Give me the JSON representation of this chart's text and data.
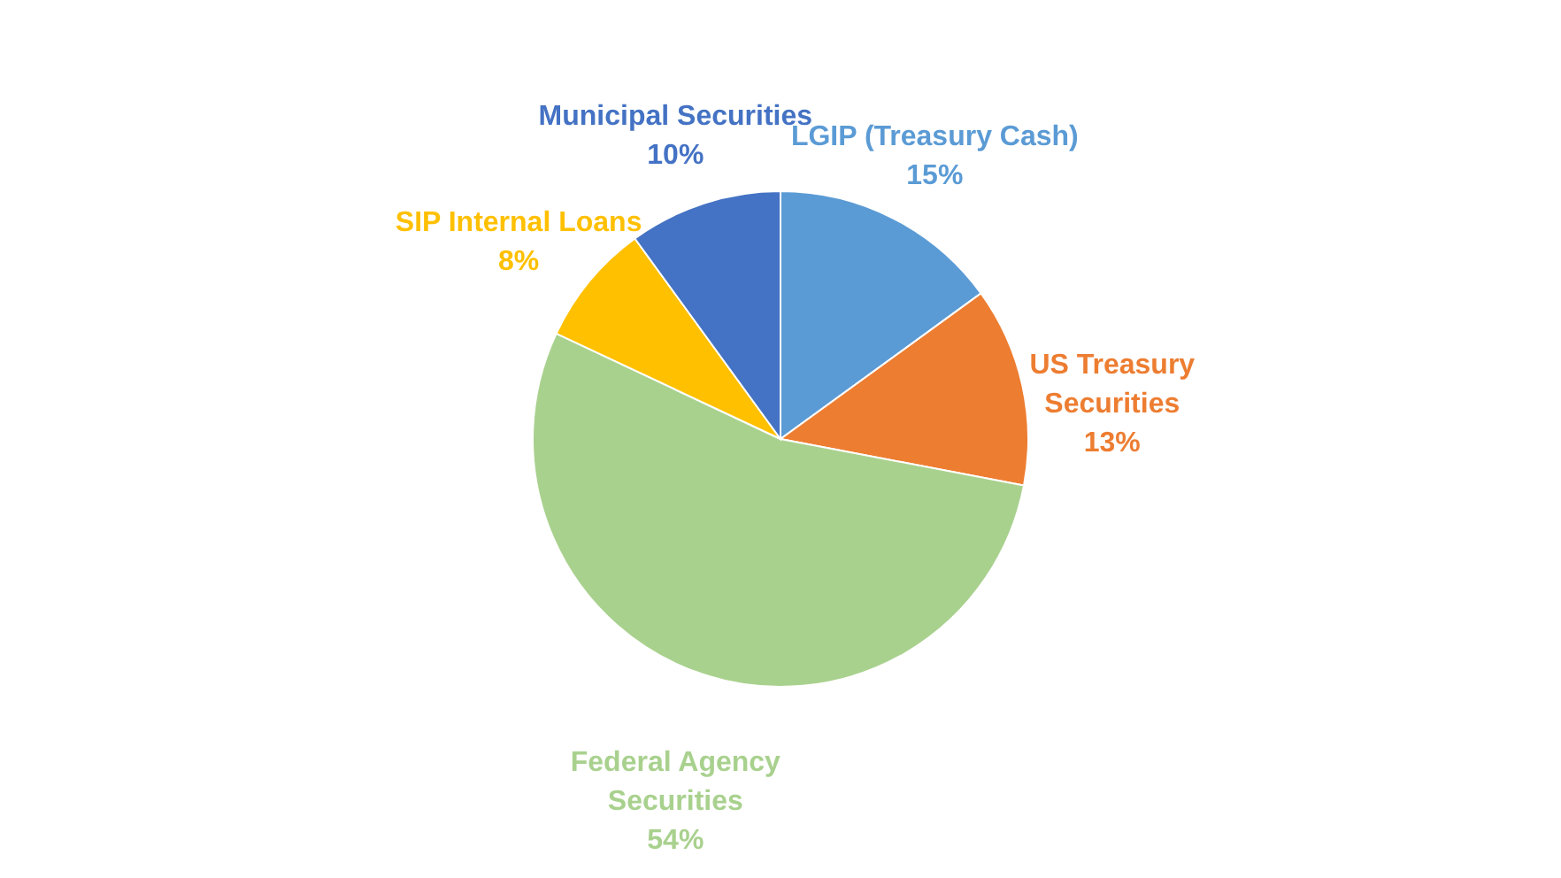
{
  "chart_data": {
    "type": "pie",
    "categories": [
      "LGIP (Treasury Cash)",
      "US Treasury Securities",
      "Federal Agency Securities",
      "SIP Internal Loans",
      "Municipal Securities"
    ],
    "values": [
      15,
      13,
      54,
      8,
      10
    ],
    "value_labels": [
      "15%",
      "13%",
      "54%",
      "8%",
      "10%"
    ],
    "colors": [
      "#5b9bd5",
      "#ed7d31",
      "#a9d18e",
      "#ffc000",
      "#4472c4"
    ],
    "legend": false
  }
}
